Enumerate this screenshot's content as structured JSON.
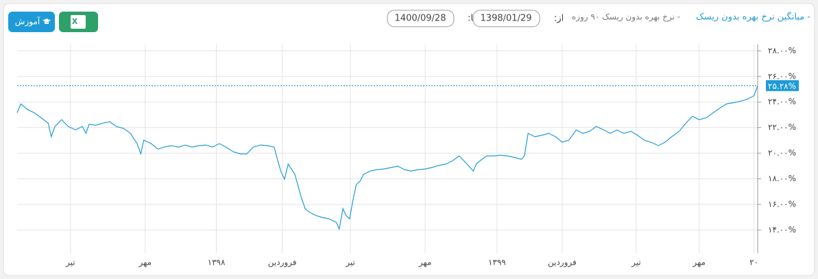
{
  "toolbar": {
    "help_button": "آموزش",
    "excel_icon": "X",
    "to_label": "تا:",
    "to_date": "1400/09/28",
    "from_label": "از:",
    "from_date": "1398/01/29",
    "legend_hidden": "- نرخ بهره بدون ریسک ۹۰ روزه"
  },
  "chart_data": {
    "type": "line",
    "series": [
      {
        "name": "- میانگین نرخ بهره بدون ریسک",
        "color": "#1e9bd7",
        "x": [
          0,
          5,
          14,
          23,
          32,
          42,
          46,
          51,
          60,
          69,
          79,
          88,
          93,
          97,
          106,
          116,
          125,
          134,
          144,
          153,
          162,
          167,
          171,
          181,
          190,
          199,
          208,
          218,
          227,
          236,
          245,
          255,
          264,
          273,
          282,
          292,
          301,
          310,
          319,
          329,
          338,
          347,
          352,
          356,
          361,
          366,
          375,
          384,
          389,
          394,
          403,
          412,
          421,
          431,
          435,
          440,
          444,
          449,
          454,
          458,
          463,
          468,
          477,
          486,
          495,
          505,
          514,
          523,
          532,
          542,
          551,
          560,
          569,
          579,
          588,
          597,
          606,
          616,
          620,
          625,
          634,
          644,
          653,
          662,
          671,
          681,
          685,
          690,
          699,
          708,
          718,
          727,
          736,
          745,
          755,
          764,
          773,
          782,
          792,
          801,
          810,
          819,
          829,
          838,
          847,
          856,
          866,
          875,
          884,
          894,
          903,
          912,
          921,
          931,
          940,
          949,
          958,
          968,
          977,
          986,
          995,
          1000
        ],
        "values": [
          23.16,
          23.85,
          23.42,
          23.16,
          22.78,
          22.35,
          21.29,
          22.09,
          22.62,
          22.09,
          21.82,
          22.09,
          21.55,
          22.25,
          22.19,
          22.35,
          22.46,
          22.09,
          21.93,
          21.55,
          20.75,
          19.95,
          21.02,
          20.75,
          20.32,
          20.48,
          20.59,
          20.48,
          20.64,
          20.48,
          20.59,
          20.64,
          20.48,
          20.75,
          20.48,
          20.11,
          19.95,
          19.95,
          20.48,
          20.64,
          20.59,
          20.48,
          19.41,
          18.61,
          17.97,
          19.15,
          18.35,
          16.48,
          15.67,
          15.41,
          15.14,
          14.98,
          14.87,
          14.6,
          14.07,
          15.67,
          15.14,
          14.87,
          16.48,
          17.54,
          17.81,
          18.35,
          18.61,
          18.72,
          18.77,
          18.88,
          18.99,
          18.72,
          18.61,
          18.72,
          18.77,
          18.88,
          19.04,
          19.15,
          19.41,
          19.79,
          19.25,
          18.61,
          19.15,
          19.41,
          19.79,
          19.79,
          19.84,
          19.79,
          19.68,
          19.52,
          19.79,
          21.55,
          21.29,
          21.39,
          21.55,
          21.29,
          20.86,
          21.02,
          21.82,
          21.55,
          21.71,
          22.09,
          21.82,
          21.55,
          21.82,
          21.55,
          21.71,
          21.39,
          21.02,
          20.86,
          20.59,
          20.86,
          21.29,
          21.71,
          22.35,
          22.89,
          22.62,
          22.78,
          23.16,
          23.53,
          23.85,
          23.96,
          24.06,
          24.22,
          24.49,
          25.28
        ]
      }
    ],
    "current": {
      "value": 25.28,
      "label": "۲۵.۲۸%"
    },
    "xlim": [
      0,
      1000
    ],
    "xticks": [
      {
        "value": 72,
        "label": "تیر"
      },
      {
        "value": 173,
        "label": "مهر"
      },
      {
        "value": 269,
        "label": "۱۳۹۸"
      },
      {
        "value": 358,
        "label": "فروردین"
      },
      {
        "value": 450,
        "label": "تیر"
      },
      {
        "value": 551,
        "label": "مهر"
      },
      {
        "value": 648,
        "label": "۱۳۹۹"
      },
      {
        "value": 736,
        "label": "فروردین"
      },
      {
        "value": 836,
        "label": "تیر"
      },
      {
        "value": 921,
        "label": "مهر"
      },
      {
        "value": 995,
        "label": "۲۰"
      }
    ],
    "ylim": [
      12.2,
      28.5
    ],
    "yticks": [
      {
        "value": 14,
        "label": "۱۴.۰۰%"
      },
      {
        "value": 16,
        "label": "۱۶.۰۰%"
      },
      {
        "value": 18,
        "label": "۱۸.۰۰%"
      },
      {
        "value": 20,
        "label": "۲۰.۰۰%"
      },
      {
        "value": 22,
        "label": "۲۲.۰۰%"
      },
      {
        "value": 24,
        "label": "۲۴.۰۰%"
      },
      {
        "value": 26,
        "label": "۲۶.۰۰%"
      },
      {
        "value": 28,
        "label": "۲۸.۰۰%"
      }
    ],
    "grid": true
  }
}
